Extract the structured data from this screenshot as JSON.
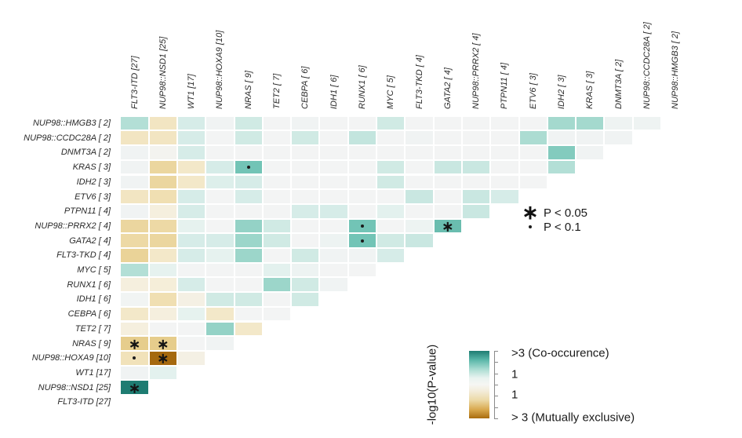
{
  "chart_data": {
    "type": "heatmap",
    "title": "",
    "description": "Triangular pairwise mutation co-occurrence / mutual exclusivity heatmap; cell values are signed -log10(P-value): positive = co-occurrence (teal), negative = mutually exclusive (brown)",
    "columns": [
      "FLT3-ITD [27]",
      "NUP98::NSD1 [25]",
      "WT1 [17]",
      "NUP98::HOXA9 [10]",
      "NRAS [ 9]",
      "TET2 [ 7]",
      "CEBPA [ 6]",
      "IDH1 [ 6]",
      "RUNX1 [ 6]",
      "MYC [ 5]",
      "FLT3-TKD [ 4]",
      "GATA2 [ 4]",
      "NUP98::PRRX2 [ 4]",
      "PTPN11 [ 4]",
      "ETV6 [ 3]",
      "IDH2 [ 3]",
      "KRAS [ 3]",
      "DNMT3A [ 2]",
      "NUP98::CCDC28A [ 2]",
      "NUP98::HMGB3 [ 2]"
    ],
    "rows": [
      "NUP98::HMGB3 [ 2]",
      "NUP98::CCDC28A [ 2]",
      "DNMT3A [ 2]",
      "KRAS [ 3]",
      "IDH2 [ 3]",
      "ETV6 [ 3]",
      "PTPN11 [ 4]",
      "NUP98::PRRX2 [ 4]",
      "GATA2 [ 4]",
      "FLT3-TKD [ 4]",
      "MYC [ 5]",
      "RUNX1 [ 6]",
      "IDH1 [ 6]",
      "CEBPA [ 6]",
      "TET2 [ 7]",
      "NRAS [ 9]",
      "NUP98::HOXA9 [10]",
      "WT1 [17]",
      "NUP98::NSD1 [25]",
      "FLT3-ITD [27]"
    ],
    "cells": [
      [
        1.2,
        -0.8,
        0.7,
        0.1,
        0.8,
        0,
        0.1,
        0,
        0,
        0.8,
        0,
        0,
        0,
        0,
        0,
        1.4,
        1.4,
        0.15,
        0.15
      ],
      [
        -0.8,
        -0.8,
        0.7,
        0,
        0.8,
        0,
        0.8,
        0,
        1.0,
        0,
        0.1,
        0,
        0,
        0,
        1.3,
        0.1,
        0.1,
        0.1
      ],
      [
        0.1,
        -0.1,
        0.7,
        0,
        0,
        0,
        0,
        0,
        0,
        0,
        0,
        0,
        0,
        0,
        0,
        1.8,
        0.1
      ],
      [
        0.1,
        -1.3,
        -0.7,
        0.7,
        2,
        0,
        0,
        0,
        0,
        0.8,
        0,
        0.9,
        0.9,
        0,
        0,
        1.2
      ],
      [
        0.1,
        -1.3,
        -0.7,
        0.6,
        0.7,
        0,
        0,
        0,
        0,
        0.8,
        0,
        0,
        0,
        0,
        0
      ],
      [
        -0.8,
        -1,
        0.7,
        0,
        0.7,
        0,
        0,
        0,
        0,
        0,
        0.9,
        0,
        0.9,
        0.7
      ],
      [
        0.1,
        -0.4,
        0.7,
        0,
        0,
        0,
        0.7,
        0.7,
        0,
        0.5,
        0,
        0,
        0.9
      ],
      [
        -1.3,
        -1.2,
        0.4,
        0,
        1.6,
        0.8,
        0,
        0,
        2,
        0,
        0.2,
        2.1
      ],
      [
        -1.2,
        -1.3,
        0.7,
        0.7,
        1.5,
        0.8,
        0,
        0.2,
        2,
        0.8,
        0.9
      ],
      [
        -1.4,
        -0.7,
        0.7,
        0.4,
        1.5,
        0,
        0.8,
        0.1,
        0.1,
        0.7
      ],
      [
        1.2,
        0.4,
        0,
        0,
        0,
        0.5,
        0.2,
        0,
        0
      ],
      [
        -0.4,
        -0.5,
        0.7,
        0,
        0,
        1.5,
        0.8,
        0.1
      ],
      [
        0.05,
        -1.0,
        -0.3,
        0.8,
        0.8,
        0,
        0.8
      ],
      [
        -0.7,
        -0.4,
        0.4,
        -0.7,
        0,
        0
      ],
      [
        -0.4,
        0,
        0,
        1.6,
        -0.7
      ],
      [
        -1.6,
        -1.6,
        0,
        0.1
      ],
      [
        -0.9,
        -3,
        -0.3
      ],
      [
        0.1,
        0.5
      ],
      [
        3
      ],
      []
    ],
    "significance": [
      {
        "row_index": 3,
        "col_index": 4,
        "row_gene": "KRAS [ 3]",
        "col_gene": "NRAS [ 9]",
        "mark": "·"
      },
      {
        "row_index": 7,
        "col_index": 8,
        "row_gene": "NUP98::PRRX2 [ 4]",
        "col_gene": "RUNX1 [ 6]",
        "mark": "·"
      },
      {
        "row_index": 7,
        "col_index": 11,
        "row_gene": "NUP98::PRRX2 [ 4]",
        "col_gene": "GATA2 [ 4]",
        "mark": "*"
      },
      {
        "row_index": 8,
        "col_index": 8,
        "row_gene": "GATA2 [ 4]",
        "col_gene": "RUNX1 [ 6]",
        "mark": "·"
      },
      {
        "row_index": 15,
        "col_index": 0,
        "row_gene": "NRAS [ 9]",
        "col_gene": "FLT3-ITD [27]",
        "mark": "*"
      },
      {
        "row_index": 15,
        "col_index": 1,
        "row_gene": "NRAS [ 9]",
        "col_gene": "NUP98::NSD1 [25]",
        "mark": "*"
      },
      {
        "row_index": 16,
        "col_index": 0,
        "row_gene": "NUP98::HOXA9 [10]",
        "col_gene": "FLT3-ITD [27]",
        "mark": "·"
      },
      {
        "row_index": 16,
        "col_index": 1,
        "row_gene": "NUP98::HOXA9 [10]",
        "col_gene": "NUP98::NSD1 [25]",
        "mark": "*"
      },
      {
        "row_index": 18,
        "col_index": 0,
        "row_gene": "NUP98::NSD1 [25]",
        "col_gene": "FLT3-ITD [27]",
        "mark": "*"
      }
    ],
    "legend": {
      "items": [
        {
          "symbol": "*",
          "label": "P < 0.05"
        },
        {
          "symbol": "·",
          "label": "P < 0.1"
        }
      ]
    },
    "colorbar": {
      "axis_label": "-log10(P-value)",
      "tick_labels": [
        ">3 (Co-occurence)",
        "1",
        "1",
        "> 3 (Mutually exclusive)"
      ],
      "colors": {
        "co_occurrence_max": "#1e7c72",
        "neutral": "#f3f4f4",
        "mutually_exclusive_max": "#a5690f"
      }
    }
  }
}
